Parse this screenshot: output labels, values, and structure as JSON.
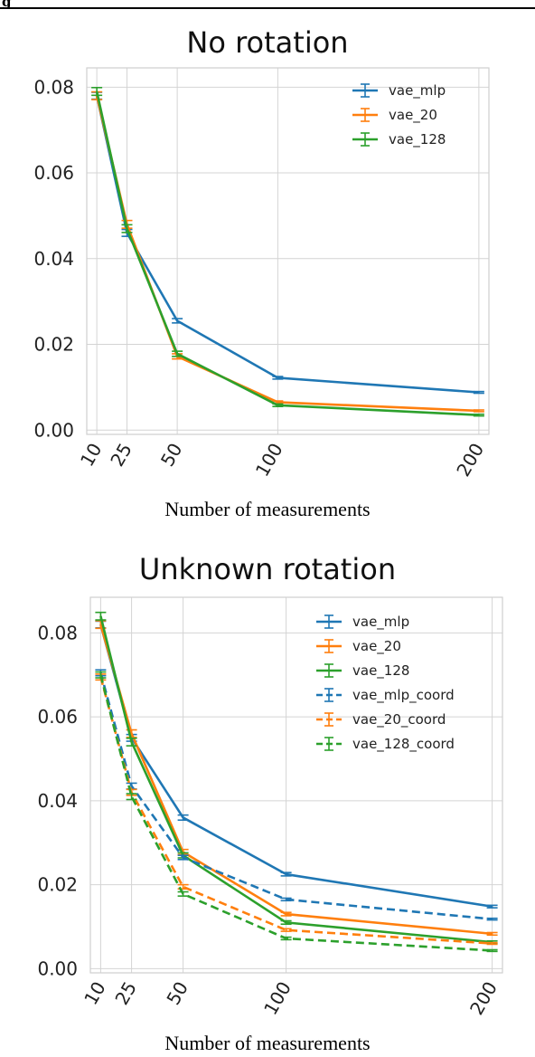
{
  "header": {
    "label": "g"
  },
  "chart_data": [
    {
      "type": "line",
      "title": "No rotation",
      "xlabel": "Number of measurements",
      "ylabel": "",
      "x": [
        10,
        25,
        50,
        100,
        200
      ],
      "xtick_labels": [
        "10",
        "25",
        "50",
        "100",
        "200"
      ],
      "xlim": [
        5,
        205
      ],
      "ylim": [
        -0.001,
        0.0845
      ],
      "yticks": [
        0.0,
        0.02,
        0.04,
        0.06,
        0.08
      ],
      "ytick_labels": [
        "0.00",
        "0.02",
        "0.04",
        "0.06",
        "0.08"
      ],
      "grid": true,
      "legend_position": "top-right",
      "series": [
        {
          "name": "vae_mlp",
          "color": "#1f77b4",
          "dashed": false,
          "values": [
            0.078,
            0.046,
            0.0255,
            0.0122,
            0.0088
          ],
          "errors": [
            0.0008,
            0.0008,
            0.0005,
            0.0003,
            0.0002
          ]
        },
        {
          "name": "vae_20",
          "color": "#ff7f0e",
          "dashed": false,
          "values": [
            0.078,
            0.048,
            0.0172,
            0.0065,
            0.0045
          ],
          "errors": [
            0.0009,
            0.0009,
            0.0006,
            0.0003,
            0.0002
          ]
        },
        {
          "name": "vae_128",
          "color": "#2ca02c",
          "dashed": false,
          "values": [
            0.079,
            0.047,
            0.0178,
            0.0058,
            0.0035
          ],
          "errors": [
            0.0009,
            0.0009,
            0.0006,
            0.0003,
            0.0002
          ]
        }
      ]
    },
    {
      "type": "line",
      "title": "Unknown rotation",
      "xlabel": "Number of measurements",
      "ylabel": "",
      "x": [
        10,
        25,
        50,
        100,
        200
      ],
      "xtick_labels": [
        "10",
        "25",
        "50",
        "100",
        "200"
      ],
      "xlim": [
        5,
        205
      ],
      "ylim": [
        -0.001,
        0.0885
      ],
      "yticks": [
        0.0,
        0.02,
        0.04,
        0.06,
        0.08
      ],
      "ytick_labels": [
        "0.00",
        "0.02",
        "0.04",
        "0.06",
        "0.08"
      ],
      "grid": true,
      "legend_position": "top-right",
      "series": [
        {
          "name": "vae_mlp",
          "color": "#1f77b4",
          "dashed": false,
          "values": [
            0.082,
            0.055,
            0.036,
            0.0225,
            0.0148
          ],
          "errors": [
            0.0008,
            0.0008,
            0.0006,
            0.0004,
            0.0003
          ]
        },
        {
          "name": "vae_20",
          "color": "#ff7f0e",
          "dashed": false,
          "values": [
            0.082,
            0.056,
            0.0278,
            0.013,
            0.0083
          ],
          "errors": [
            0.0009,
            0.0009,
            0.0006,
            0.0004,
            0.0003
          ]
        },
        {
          "name": "vae_128",
          "color": "#2ca02c",
          "dashed": false,
          "values": [
            0.084,
            0.054,
            0.027,
            0.011,
            0.0063
          ],
          "errors": [
            0.0009,
            0.0009,
            0.0006,
            0.0004,
            0.0003
          ]
        },
        {
          "name": "vae_mlp_coord",
          "color": "#1f77b4",
          "dashed": true,
          "values": [
            0.0705,
            0.0435,
            0.0265,
            0.0165,
            0.0118
          ],
          "errors": [
            0.0007,
            0.0007,
            0.0005,
            0.0003,
            0.0002
          ]
        },
        {
          "name": "vae_20_coord",
          "color": "#ff7f0e",
          "dashed": true,
          "values": [
            0.0695,
            0.042,
            0.0195,
            0.0092,
            0.006
          ],
          "errors": [
            0.0007,
            0.0007,
            0.0005,
            0.0003,
            0.0002
          ]
        },
        {
          "name": "vae_128_coord",
          "color": "#2ca02c",
          "dashed": true,
          "values": [
            0.07,
            0.041,
            0.0178,
            0.0072,
            0.0043
          ],
          "errors": [
            0.0007,
            0.0007,
            0.0005,
            0.0003,
            0.0002
          ]
        }
      ]
    }
  ]
}
